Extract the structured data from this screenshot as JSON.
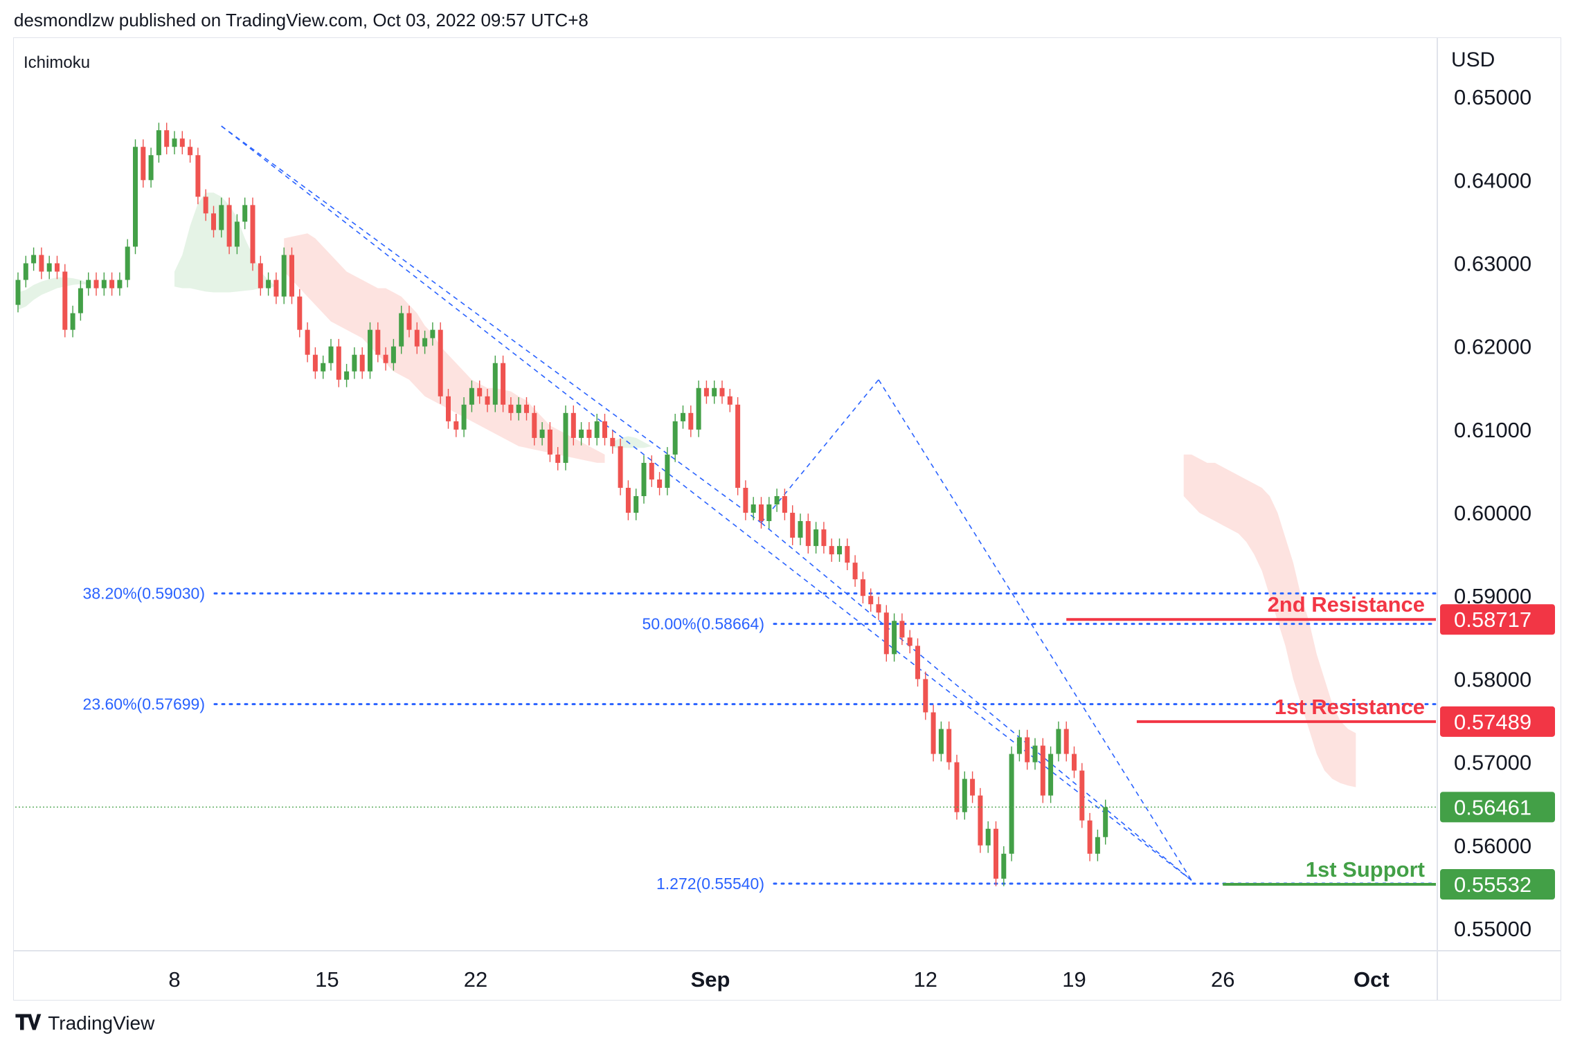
{
  "header": {
    "text": "desmondlzw published on TradingView.com, Oct 03, 2022 09:57 UTC+8"
  },
  "indicator": {
    "label": "Ichimoku"
  },
  "footer": {
    "brand": "TradingView",
    "logo_icon": "tradingview-logo-icon"
  },
  "colors": {
    "bull": "#43a047",
    "bear": "#ef5350",
    "fib": "#2962ff",
    "cloud_bear": "#fde3e0",
    "cloud_bull": "#e5f3e6",
    "resistance": "#f23645",
    "support": "#43a047",
    "current": "#43a047"
  },
  "chart_data": {
    "type": "candlestick",
    "currency_label": "USD",
    "ylim": [
      0.5475,
      0.657
    ],
    "y_ticks": [
      "0.65000",
      "0.64000",
      "0.63000",
      "0.62000",
      "0.61000",
      "0.60000",
      "0.59000",
      "0.58000",
      "0.57000",
      "0.56000",
      "0.55000"
    ],
    "x_ticks": [
      {
        "label": "8",
        "bold": false
      },
      {
        "label": "15",
        "bold": false
      },
      {
        "label": "22",
        "bold": false
      },
      {
        "label": "Sep",
        "bold": true
      },
      {
        "label": "12",
        "bold": false
      },
      {
        "label": "19",
        "bold": false
      },
      {
        "label": "26",
        "bold": false
      },
      {
        "label": "Oct",
        "bold": true
      }
    ],
    "x_tick_index": [
      20,
      39.5,
      58.5,
      88.5,
      116,
      135,
      154,
      173
    ],
    "candles": [
      [
        0.625,
        0.628
      ],
      [
        0.628,
        0.63
      ],
      [
        0.63,
        0.631
      ],
      [
        0.631,
        0.629
      ],
      [
        0.629,
        0.63
      ],
      [
        0.63,
        0.629
      ],
      [
        0.629,
        0.622
      ],
      [
        0.622,
        0.624
      ],
      [
        0.624,
        0.627
      ],
      [
        0.627,
        0.628
      ],
      [
        0.628,
        0.627
      ],
      [
        0.627,
        0.628
      ],
      [
        0.628,
        0.627
      ],
      [
        0.627,
        0.628
      ],
      [
        0.628,
        0.632
      ],
      [
        0.632,
        0.644
      ],
      [
        0.644,
        0.64
      ],
      [
        0.64,
        0.643
      ],
      [
        0.643,
        0.646
      ],
      [
        0.646,
        0.644
      ],
      [
        0.644,
        0.645
      ],
      [
        0.645,
        0.644
      ],
      [
        0.644,
        0.643
      ],
      [
        0.643,
        0.638
      ],
      [
        0.638,
        0.636
      ],
      [
        0.636,
        0.634
      ],
      [
        0.634,
        0.637
      ],
      [
        0.637,
        0.632
      ],
      [
        0.632,
        0.635
      ],
      [
        0.635,
        0.637
      ],
      [
        0.637,
        0.63
      ],
      [
        0.63,
        0.627
      ],
      [
        0.627,
        0.628
      ],
      [
        0.628,
        0.626
      ],
      [
        0.626,
        0.631
      ],
      [
        0.631,
        0.626
      ],
      [
        0.626,
        0.622
      ],
      [
        0.622,
        0.619
      ],
      [
        0.619,
        0.617
      ],
      [
        0.617,
        0.618
      ],
      [
        0.618,
        0.62
      ],
      [
        0.62,
        0.616
      ],
      [
        0.616,
        0.617
      ],
      [
        0.617,
        0.619
      ],
      [
        0.619,
        0.617
      ],
      [
        0.617,
        0.622
      ],
      [
        0.622,
        0.619
      ],
      [
        0.619,
        0.618
      ],
      [
        0.618,
        0.62
      ],
      [
        0.62,
        0.624
      ],
      [
        0.624,
        0.622
      ],
      [
        0.622,
        0.62
      ],
      [
        0.62,
        0.621
      ],
      [
        0.621,
        0.622
      ],
      [
        0.622,
        0.614
      ],
      [
        0.614,
        0.611
      ],
      [
        0.611,
        0.61
      ],
      [
        0.61,
        0.613
      ],
      [
        0.613,
        0.615
      ],
      [
        0.615,
        0.614
      ],
      [
        0.614,
        0.613
      ],
      [
        0.613,
        0.618
      ],
      [
        0.618,
        0.613
      ],
      [
        0.613,
        0.612
      ],
      [
        0.612,
        0.613
      ],
      [
        0.613,
        0.612
      ],
      [
        0.612,
        0.609
      ],
      [
        0.609,
        0.61
      ],
      [
        0.61,
        0.607
      ],
      [
        0.607,
        0.606
      ],
      [
        0.606,
        0.612
      ],
      [
        0.612,
        0.609
      ],
      [
        0.609,
        0.61
      ],
      [
        0.61,
        0.609
      ],
      [
        0.609,
        0.611
      ],
      [
        0.611,
        0.609
      ],
      [
        0.609,
        0.608
      ],
      [
        0.608,
        0.603
      ],
      [
        0.603,
        0.6
      ],
      [
        0.6,
        0.602
      ],
      [
        0.602,
        0.606
      ],
      [
        0.606,
        0.604
      ],
      [
        0.604,
        0.603
      ],
      [
        0.603,
        0.607
      ],
      [
        0.607,
        0.611
      ],
      [
        0.611,
        0.612
      ],
      [
        0.612,
        0.61
      ],
      [
        0.61,
        0.615
      ],
      [
        0.615,
        0.614
      ],
      [
        0.614,
        0.615
      ],
      [
        0.615,
        0.614
      ],
      [
        0.614,
        0.613
      ],
      [
        0.613,
        0.603
      ],
      [
        0.603,
        0.6
      ],
      [
        0.6,
        0.601
      ],
      [
        0.601,
        0.599
      ],
      [
        0.599,
        0.601
      ],
      [
        0.601,
        0.602
      ],
      [
        0.602,
        0.6
      ],
      [
        0.6,
        0.597
      ],
      [
        0.597,
        0.599
      ],
      [
        0.599,
        0.596
      ],
      [
        0.596,
        0.598
      ],
      [
        0.598,
        0.596
      ],
      [
        0.596,
        0.595
      ],
      [
        0.595,
        0.596
      ],
      [
        0.596,
        0.594
      ],
      [
        0.594,
        0.592
      ],
      [
        0.592,
        0.59
      ],
      [
        0.59,
        0.589
      ],
      [
        0.589,
        0.588
      ],
      [
        0.588,
        0.583
      ],
      [
        0.583,
        0.587
      ],
      [
        0.587,
        0.585
      ],
      [
        0.585,
        0.584
      ],
      [
        0.584,
        0.58
      ],
      [
        0.58,
        0.576
      ],
      [
        0.576,
        0.571
      ],
      [
        0.571,
        0.574
      ],
      [
        0.574,
        0.57
      ],
      [
        0.57,
        0.564
      ],
      [
        0.564,
        0.568
      ],
      [
        0.568,
        0.566
      ],
      [
        0.566,
        0.56
      ],
      [
        0.56,
        0.562
      ],
      [
        0.562,
        0.556
      ],
      [
        0.556,
        0.559
      ],
      [
        0.559,
        0.571
      ],
      [
        0.571,
        0.573
      ],
      [
        0.573,
        0.57
      ],
      [
        0.57,
        0.572
      ],
      [
        0.572,
        0.566
      ],
      [
        0.566,
        0.571
      ],
      [
        0.571,
        0.574
      ],
      [
        0.574,
        0.571
      ],
      [
        0.571,
        0.569
      ],
      [
        0.569,
        0.563
      ],
      [
        0.563,
        0.559
      ],
      [
        0.559,
        0.561
      ],
      [
        0.561,
        0.5646
      ]
    ],
    "cloud_spans": [
      {
        "kind": "bull",
        "top": [
          0.6265,
          0.6268,
          0.6274,
          0.6278,
          0.6281,
          0.6283,
          0.6283,
          0.6282,
          0.628,
          0.6276
        ],
        "bottom": [
          0.6244,
          0.6248,
          0.6256,
          0.6262,
          0.6266,
          0.627,
          0.6272,
          0.6274,
          0.6275,
          0.6274
        ],
        "start": 0
      },
      {
        "kind": "bull",
        "top": [
          0.629,
          0.631,
          0.6345,
          0.6372,
          0.6385,
          0.6385,
          0.638,
          0.637,
          0.6355,
          0.633,
          0.631,
          0.629,
          0.628,
          0.6272
        ],
        "bottom": [
          0.6272,
          0.627,
          0.627,
          0.6268,
          0.6266,
          0.6265,
          0.6265,
          0.6265,
          0.6266,
          0.6267,
          0.6268,
          0.627,
          0.6271,
          0.6272
        ],
        "start": 20
      },
      {
        "kind": "bear",
        "top": [
          0.633,
          0.6332,
          0.6334,
          0.6336,
          0.633,
          0.632,
          0.631,
          0.63,
          0.629,
          0.6285,
          0.628,
          0.6275,
          0.627,
          0.627,
          0.6265,
          0.626,
          0.625,
          0.624,
          0.6225,
          0.6215,
          0.62,
          0.619,
          0.618,
          0.617,
          0.616,
          0.6155,
          0.615,
          0.615,
          0.6148,
          0.6146,
          0.614,
          0.6135,
          0.6125,
          0.6115,
          0.6105,
          0.61,
          0.6095,
          0.609,
          0.6085,
          0.608,
          0.6075,
          0.607
        ],
        "bottom": [
          0.629,
          0.628,
          0.627,
          0.626,
          0.625,
          0.624,
          0.623,
          0.6225,
          0.622,
          0.6215,
          0.621,
          0.62,
          0.619,
          0.618,
          0.617,
          0.6165,
          0.616,
          0.615,
          0.614,
          0.6135,
          0.613,
          0.6125,
          0.612,
          0.6115,
          0.611,
          0.6105,
          0.61,
          0.6095,
          0.609,
          0.6085,
          0.608,
          0.6078,
          0.6076,
          0.6074,
          0.6072,
          0.607,
          0.6068,
          0.6066,
          0.6064,
          0.6062,
          0.606,
          0.606
        ],
        "start": 34
      },
      {
        "kind": "bull",
        "top": [
          0.6085,
          0.609,
          0.6092,
          0.609,
          0.6085,
          0.608
        ],
        "bottom": [
          0.6078,
          0.6078,
          0.6078,
          0.6078,
          0.6078,
          0.608
        ],
        "start": 76
      },
      {
        "kind": "bear",
        "top": [
          0.607,
          0.607,
          0.6065,
          0.606,
          0.606,
          0.6055,
          0.605,
          0.6045,
          0.604,
          0.6035,
          0.603,
          0.602,
          0.6,
          0.597,
          0.594,
          0.59,
          0.587,
          0.583,
          0.58,
          0.577,
          0.575,
          0.574,
          0.5735
        ],
        "bottom": [
          0.602,
          0.601,
          0.6,
          0.5995,
          0.599,
          0.5985,
          0.598,
          0.5975,
          0.5965,
          0.595,
          0.593,
          0.59,
          0.587,
          0.584,
          0.58,
          0.577,
          0.574,
          0.571,
          0.569,
          0.568,
          0.5675,
          0.5672,
          0.567
        ],
        "start": 149
      }
    ],
    "fib_levels": [
      {
        "label": "38.20%(0.59030)",
        "value": 0.5903,
        "start_index": 0
      },
      {
        "label": "50.00%(0.58664)",
        "value": 0.58664,
        "start_index": 95
      },
      {
        "label": "23.60%(0.57699)",
        "value": 0.57699,
        "start_index": 0
      },
      {
        "label": "1.272(0.55540)",
        "value": 0.5554,
        "start_index": 95
      }
    ],
    "horizontal_levels": [
      {
        "label": "2nd Resistance",
        "value": 0.58717,
        "price_tag": "0.58717",
        "kind": "resistance",
        "start_index": 134
      },
      {
        "label": "1st Resistance",
        "value": 0.57489,
        "price_tag": "0.57489",
        "kind": "resistance",
        "start_index": 143
      },
      {
        "label": "1st Support",
        "value": 0.55532,
        "price_tag": "0.55532",
        "kind": "support",
        "start_index": 154
      }
    ],
    "current_price": {
      "value": 0.56461,
      "price_tag": "0.56461"
    },
    "drawings": [
      {
        "points": [
          [
            26,
            0.6465
          ],
          [
            95,
            0.5988
          ]
        ]
      },
      {
        "points": [
          [
            26,
            0.6465
          ],
          [
            150,
            0.5558
          ]
        ]
      },
      {
        "points": [
          [
            95,
            0.5988
          ],
          [
            110,
            0.616
          ]
        ]
      },
      {
        "points": [
          [
            110,
            0.616
          ],
          [
            150,
            0.5558
          ]
        ]
      },
      {
        "points": [
          [
            95,
            0.5988
          ],
          [
            150,
            0.5558
          ]
        ]
      }
    ]
  }
}
